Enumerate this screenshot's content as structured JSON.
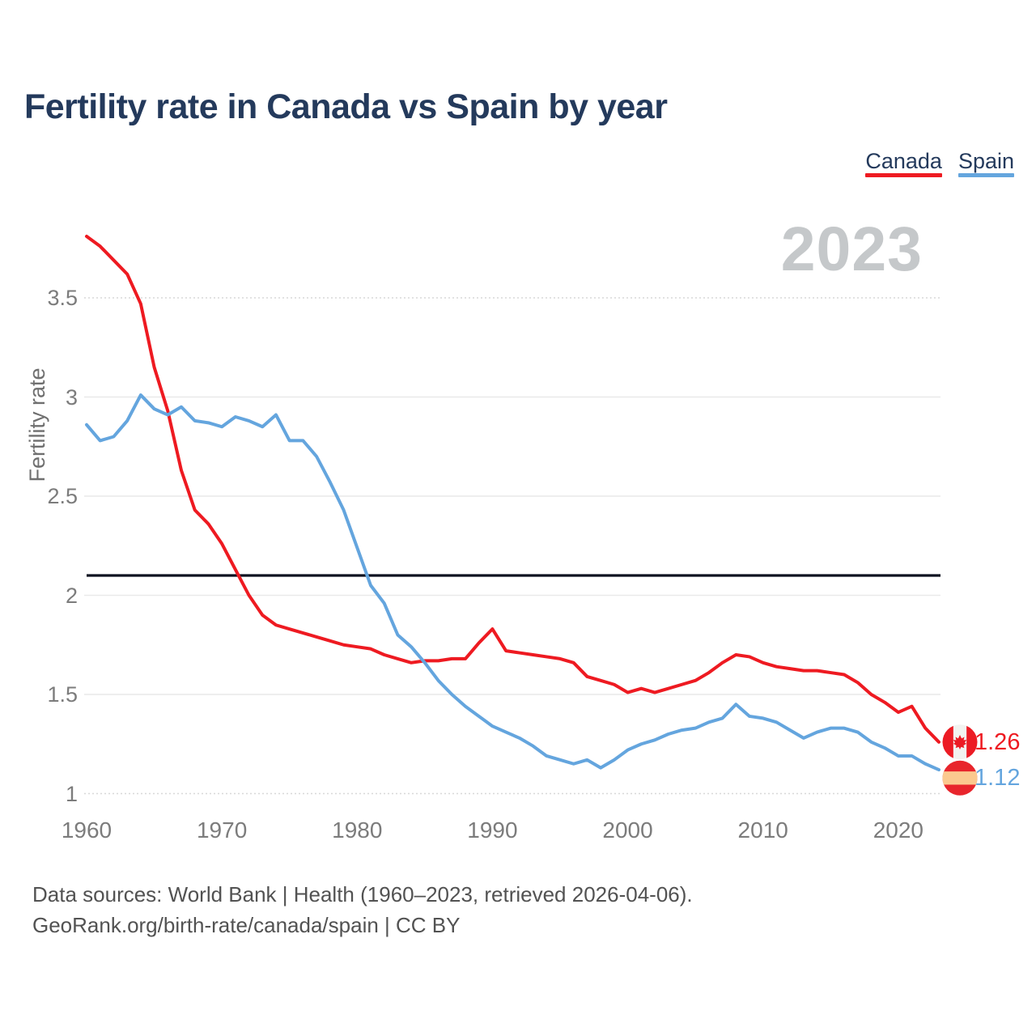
{
  "title": "Fertility rate in Canada vs Spain by year",
  "legend": [
    {
      "label": "Canada",
      "color": "#ee1a21"
    },
    {
      "label": "Spain",
      "color": "#64a5de"
    }
  ],
  "watermark": "2023",
  "ylabel": "Fertility rate",
  "end_labels": {
    "canada": "1.26",
    "spain": "1.12"
  },
  "footer": {
    "line1": "Data sources: World Bank | Health (1960–2023, retrieved 2026-04-06).",
    "line2": "GeoRank.org/birth-rate/canada/spain | CC BY"
  },
  "colors": {
    "canada_red": "#ee1a21",
    "spain_blue": "#64a5de",
    "title_navy": "#243a5c",
    "reference_black": "#0e1220",
    "grid_inner": "#e9e9e9",
    "grid_edge": "#d8d8d8",
    "tick_gray": "#7c7c7c",
    "watermark_gray": "#c5c8ca",
    "footer_gray": "#525252",
    "flag_canada_red": "#ec1b24",
    "flag_canada_white": "#f2f3f0",
    "flag_spain_red": "#e8252c",
    "flag_spain_yellow": "#fbc98f"
  },
  "chart_data": {
    "type": "line",
    "title": "Fertility rate in Canada vs Spain by year",
    "xlabel": "",
    "ylabel": "Fertility rate",
    "grid": true,
    "legend_position": "top-right",
    "ylim": [
      1,
      3.9
    ],
    "yticks": [
      1,
      1.5,
      2,
      2.5,
      3,
      3.5
    ],
    "xticks": [
      1960,
      1970,
      1980,
      1990,
      2000,
      2010,
      2020
    ],
    "reference_line": 2.1,
    "x": [
      1960,
      1961,
      1962,
      1963,
      1964,
      1965,
      1966,
      1967,
      1968,
      1969,
      1970,
      1971,
      1972,
      1973,
      1974,
      1975,
      1976,
      1977,
      1978,
      1979,
      1980,
      1981,
      1982,
      1983,
      1984,
      1985,
      1986,
      1987,
      1988,
      1989,
      1990,
      1991,
      1992,
      1993,
      1994,
      1995,
      1996,
      1997,
      1998,
      1999,
      2000,
      2001,
      2002,
      2003,
      2004,
      2005,
      2006,
      2007,
      2008,
      2009,
      2010,
      2011,
      2012,
      2013,
      2014,
      2015,
      2016,
      2017,
      2018,
      2019,
      2020,
      2021,
      2022,
      2023
    ],
    "series": [
      {
        "name": "Canada",
        "color": "#ee1a21",
        "final_value": 1.26,
        "values": [
          3.81,
          3.76,
          3.69,
          3.62,
          3.47,
          3.15,
          2.93,
          2.63,
          2.43,
          2.36,
          2.26,
          2.13,
          2.0,
          1.9,
          1.85,
          1.83,
          1.81,
          1.79,
          1.77,
          1.75,
          1.74,
          1.73,
          1.7,
          1.68,
          1.66,
          1.67,
          1.67,
          1.68,
          1.68,
          1.76,
          1.83,
          1.72,
          1.71,
          1.7,
          1.69,
          1.68,
          1.66,
          1.59,
          1.57,
          1.55,
          1.51,
          1.53,
          1.51,
          1.53,
          1.55,
          1.57,
          1.61,
          1.66,
          1.7,
          1.69,
          1.66,
          1.64,
          1.63,
          1.62,
          1.62,
          1.61,
          1.6,
          1.56,
          1.5,
          1.46,
          1.41,
          1.44,
          1.33,
          1.26
        ]
      },
      {
        "name": "Spain",
        "color": "#64a5de",
        "final_value": 1.12,
        "values": [
          2.86,
          2.78,
          2.8,
          2.88,
          3.01,
          2.94,
          2.91,
          2.95,
          2.88,
          2.87,
          2.85,
          2.9,
          2.88,
          2.85,
          2.91,
          2.78,
          2.78,
          2.7,
          2.57,
          2.43,
          2.24,
          2.05,
          1.96,
          1.8,
          1.74,
          1.66,
          1.57,
          1.5,
          1.44,
          1.39,
          1.34,
          1.31,
          1.28,
          1.24,
          1.19,
          1.17,
          1.15,
          1.17,
          1.13,
          1.17,
          1.22,
          1.25,
          1.27,
          1.3,
          1.32,
          1.33,
          1.36,
          1.38,
          1.45,
          1.39,
          1.38,
          1.36,
          1.32,
          1.28,
          1.31,
          1.33,
          1.33,
          1.31,
          1.26,
          1.23,
          1.19,
          1.19,
          1.15,
          1.12
        ]
      }
    ]
  }
}
